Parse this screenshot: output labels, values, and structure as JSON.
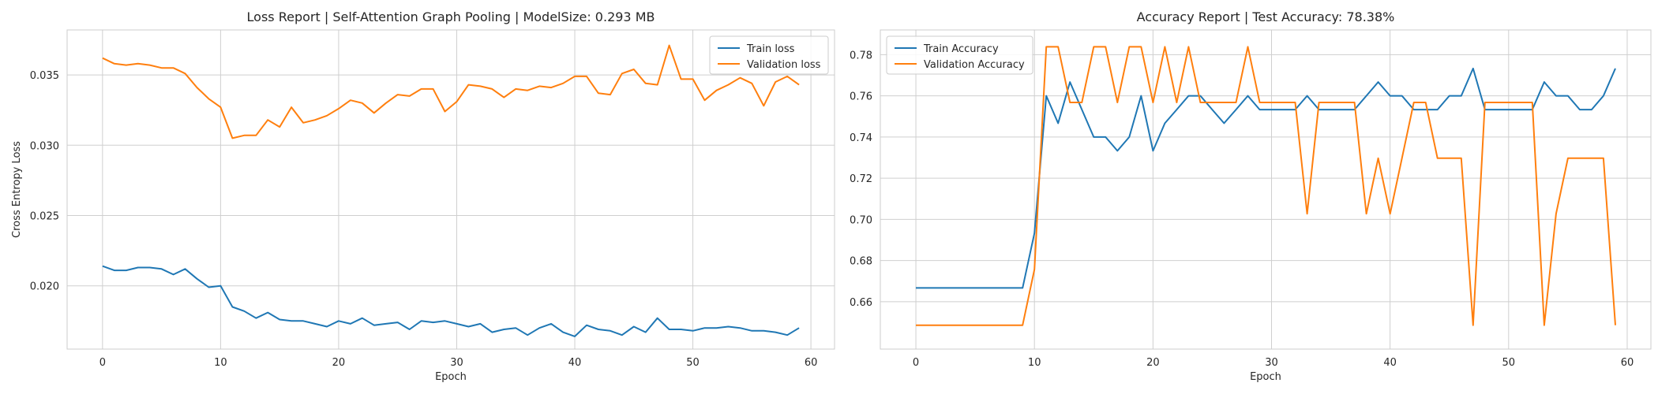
{
  "chart_data": [
    {
      "type": "line",
      "title": "Loss Report | Self-Attention Graph Pooling | ModelSize: 0.293 MB",
      "xlabel": "Epoch",
      "ylabel": "Cross Entropy Loss",
      "xlim": [
        -3,
        62
      ],
      "ylim": [
        0.0155,
        0.0382
      ],
      "xticks": [
        0,
        10,
        20,
        30,
        40,
        50,
        60
      ],
      "yticks": [
        0.02,
        0.025,
        0.03,
        0.035
      ],
      "ytick_labels": [
        "0.020",
        "0.025",
        "0.030",
        "0.035"
      ],
      "grid": true,
      "legend_position": "top-right",
      "series": [
        {
          "name": "Train loss",
          "color": "#1f77b4",
          "values": [
            0.0214,
            0.0211,
            0.0211,
            0.0213,
            0.0213,
            0.0212,
            0.0208,
            0.0212,
            0.0205,
            0.0199,
            0.02,
            0.0185,
            0.0182,
            0.0177,
            0.0181,
            0.0176,
            0.0175,
            0.0175,
            0.0173,
            0.0171,
            0.0175,
            0.0173,
            0.0177,
            0.0172,
            0.0173,
            0.0174,
            0.0169,
            0.0175,
            0.0174,
            0.0175,
            0.0173,
            0.0171,
            0.0173,
            0.0167,
            0.0169,
            0.017,
            0.0165,
            0.017,
            0.0173,
            0.0167,
            0.0164,
            0.0172,
            0.0169,
            0.0168,
            0.0165,
            0.0171,
            0.0167,
            0.0177,
            0.0169,
            0.0169,
            0.0168,
            0.017,
            0.017,
            0.0171,
            0.017,
            0.0168,
            0.0168,
            0.0167,
            0.0165,
            0.017
          ]
        },
        {
          "name": "Validation loss",
          "color": "#ff7f0e",
          "values": [
            0.0362,
            0.0358,
            0.0357,
            0.0358,
            0.0357,
            0.0355,
            0.0355,
            0.0351,
            0.0341,
            0.0333,
            0.0327,
            0.0305,
            0.0307,
            0.0307,
            0.0318,
            0.0313,
            0.0327,
            0.0316,
            0.0318,
            0.0321,
            0.0326,
            0.0332,
            0.033,
            0.0323,
            0.033,
            0.0336,
            0.0335,
            0.034,
            0.034,
            0.0324,
            0.0331,
            0.0343,
            0.0342,
            0.034,
            0.0334,
            0.034,
            0.0339,
            0.0342,
            0.0341,
            0.0344,
            0.0349,
            0.0349,
            0.0337,
            0.0336,
            0.0351,
            0.0354,
            0.0344,
            0.0343,
            0.0371,
            0.0347,
            0.0347,
            0.0332,
            0.0339,
            0.0343,
            0.0348,
            0.0344,
            0.0328,
            0.0345,
            0.0349,
            0.0343
          ]
        }
      ]
    },
    {
      "type": "line",
      "title": "Accuracy Report | Test Accuracy: 78.38%",
      "xlabel": "Epoch",
      "ylabel": "",
      "xlim": [
        -3,
        62
      ],
      "ylim": [
        0.637,
        0.792
      ],
      "xticks": [
        0,
        10,
        20,
        30,
        40,
        50,
        60
      ],
      "yticks": [
        0.66,
        0.68,
        0.7,
        0.72,
        0.74,
        0.76,
        0.78
      ],
      "ytick_labels": [
        "0.66",
        "0.68",
        "0.70",
        "0.72",
        "0.74",
        "0.76",
        "0.78"
      ],
      "grid": true,
      "legend_position": "top-left",
      "series": [
        {
          "name": "Train Accuracy",
          "color": "#1f77b4",
          "values": [
            0.6667,
            0.6667,
            0.6667,
            0.6667,
            0.6667,
            0.6667,
            0.6667,
            0.6667,
            0.6667,
            0.6667,
            0.6933,
            0.76,
            0.7467,
            0.7667,
            0.7533,
            0.74,
            0.74,
            0.7333,
            0.74,
            0.76,
            0.7333,
            0.7467,
            0.7533,
            0.76,
            0.76,
            0.7533,
            0.7467,
            0.7533,
            0.76,
            0.7533,
            0.7533,
            0.7533,
            0.7533,
            0.76,
            0.7533,
            0.7533,
            0.7533,
            0.7533,
            0.76,
            0.7667,
            0.76,
            0.76,
            0.7533,
            0.7533,
            0.7533,
            0.76,
            0.76,
            0.7733,
            0.7533,
            0.7533,
            0.7533,
            0.7533,
            0.7533,
            0.7667,
            0.76,
            0.76,
            0.7533,
            0.7533,
            0.76,
            0.7733
          ]
        },
        {
          "name": "Validation Accuracy",
          "color": "#ff7f0e",
          "values": [
            0.6486,
            0.6486,
            0.6486,
            0.6486,
            0.6486,
            0.6486,
            0.6486,
            0.6486,
            0.6486,
            0.6486,
            0.6757,
            0.7838,
            0.7838,
            0.7568,
            0.7568,
            0.7838,
            0.7838,
            0.7568,
            0.7838,
            0.7838,
            0.7568,
            0.7838,
            0.7568,
            0.7838,
            0.7568,
            0.7568,
            0.7568,
            0.7568,
            0.7838,
            0.7568,
            0.7568,
            0.7568,
            0.7568,
            0.7027,
            0.7568,
            0.7568,
            0.7568,
            0.7568,
            0.7027,
            0.7297,
            0.7027,
            0.7297,
            0.7568,
            0.7568,
            0.7297,
            0.7297,
            0.7297,
            0.6486,
            0.7568,
            0.7568,
            0.7568,
            0.7568,
            0.7568,
            0.6486,
            0.7027,
            0.7297,
            0.7297,
            0.7297,
            0.7297,
            0.6486
          ]
        }
      ]
    }
  ]
}
